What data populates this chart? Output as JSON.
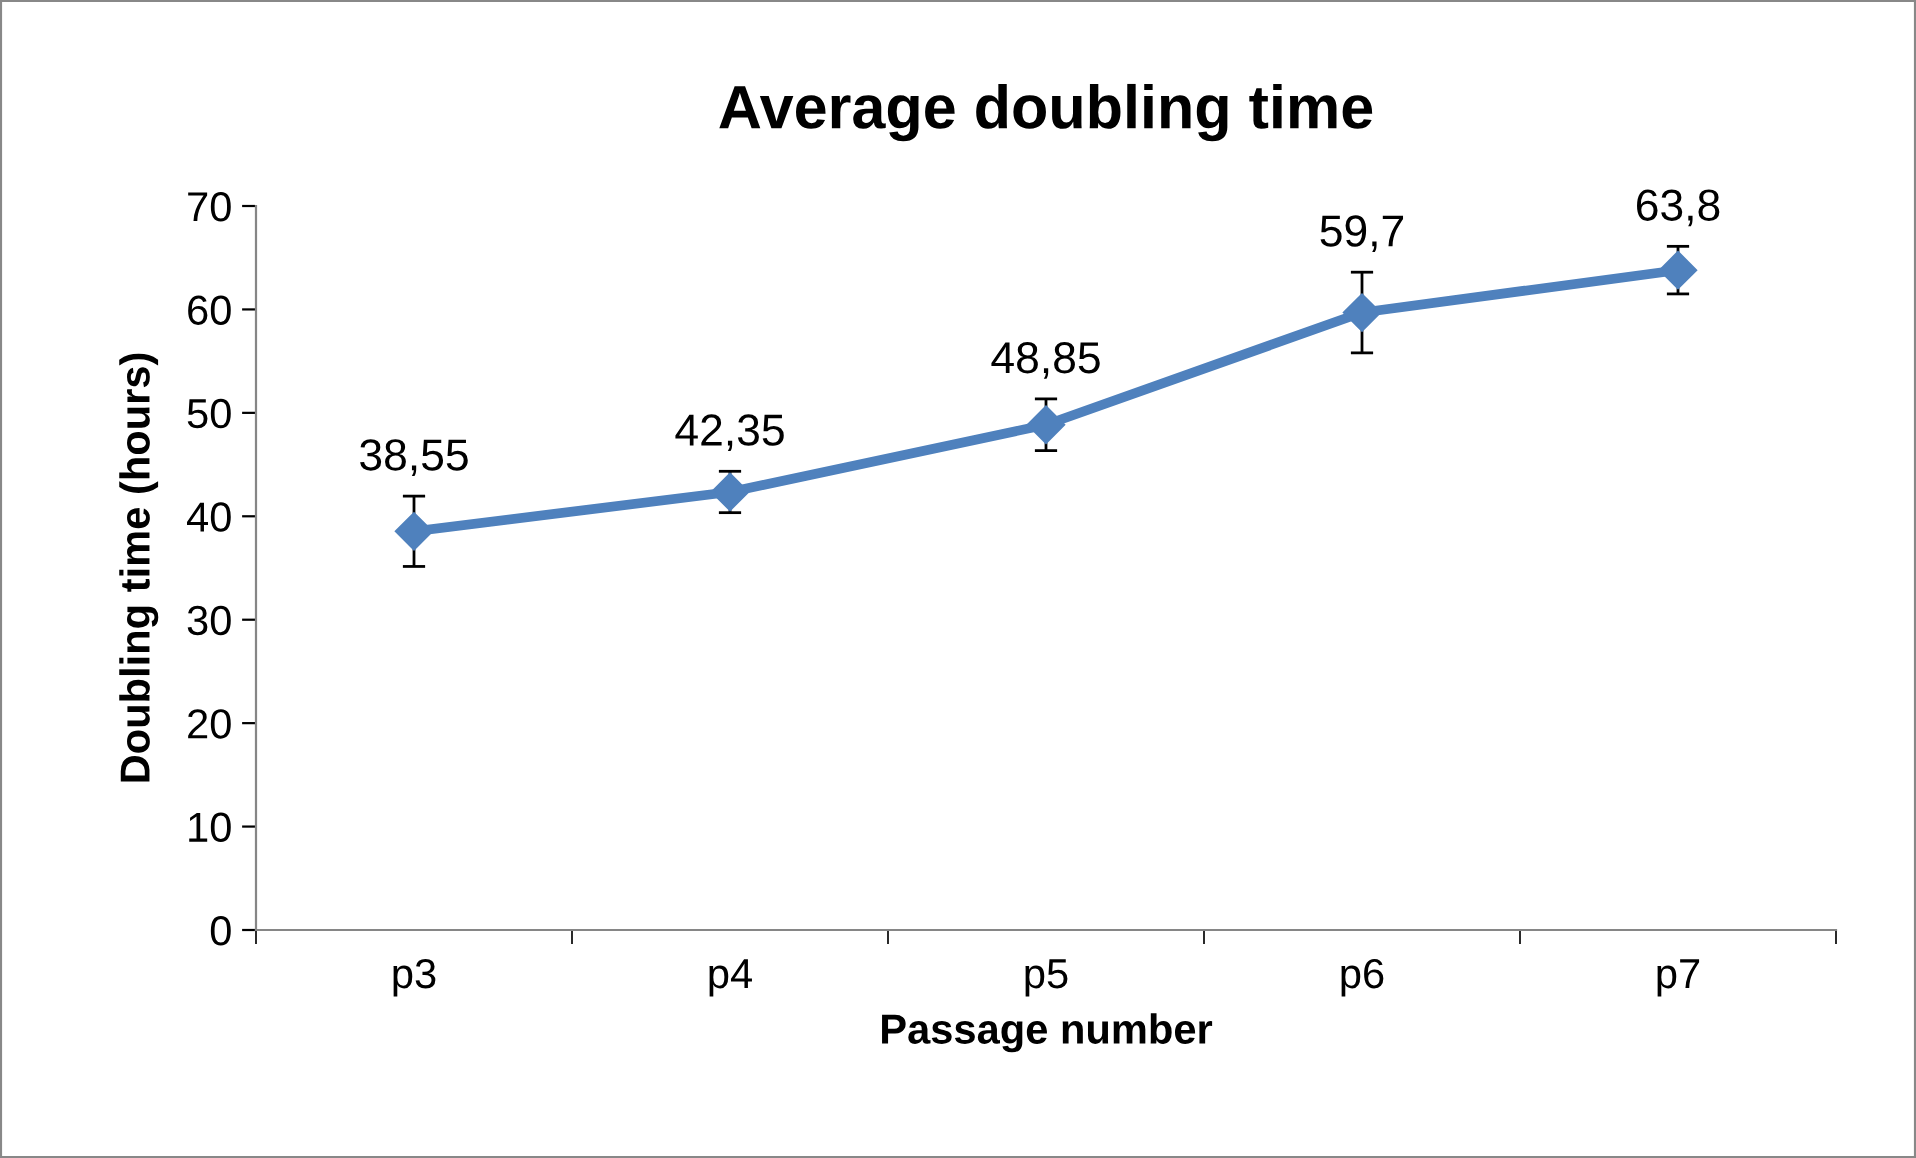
{
  "chart_data": {
    "type": "line",
    "title": "Average doubling time",
    "xlabel": "Passage number",
    "ylabel": "Doubling time (hours)",
    "categories": [
      "p3",
      "p4",
      "p5",
      "p6",
      "p7"
    ],
    "series": [
      {
        "color": "#4f81bd",
        "values": [
          38.55,
          42.35,
          48.85,
          59.7,
          63.8
        ],
        "errors": [
          3.4,
          2.0,
          2.5,
          3.9,
          2.3
        ],
        "value_labels": [
          "38,55",
          "42,35",
          "48,85",
          "59,7",
          "63,8"
        ]
      }
    ],
    "ylim": [
      0,
      70
    ],
    "yticks": [
      0,
      10,
      20,
      30,
      40,
      50,
      60,
      70
    ],
    "grid": false,
    "legend": false,
    "marker": "diamond",
    "line_style": "solid"
  }
}
